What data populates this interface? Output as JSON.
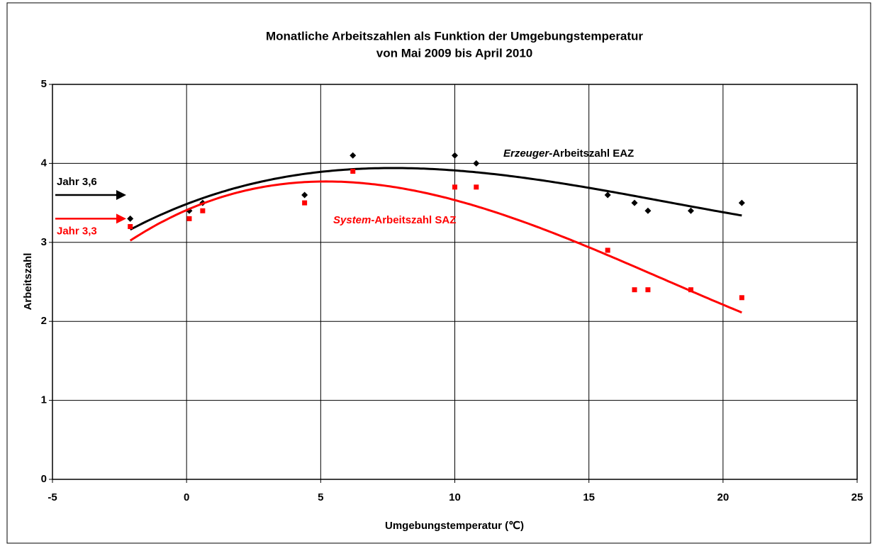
{
  "chart_data": {
    "type": "scatter",
    "title": [
      "Monatliche Arbeitszahlen als Funktion der Umgebungstemperatur",
      "von Mai 2009 bis April 2010"
    ],
    "x_label": "Umgebungstemperatur (℃)",
    "y_label": "Arbeitszahl",
    "xlim": [
      -5,
      25
    ],
    "xticks": [
      -5,
      0,
      5,
      10,
      15,
      20,
      25
    ],
    "ylim": [
      0,
      5
    ],
    "yticks": [
      0,
      1,
      2,
      3,
      4,
      5
    ],
    "grid": true,
    "trendline": {
      "type": "polynomial",
      "order": 3
    },
    "series": [
      {
        "name_parts": [
          "Erzeuger",
          "-Arbeitszahl EAZ"
        ],
        "color": "#000000",
        "marker": "diamond",
        "x": [
          -2.1,
          0.1,
          0.6,
          4.4,
          6.2,
          10.0,
          10.8,
          15.7,
          16.7,
          17.2,
          18.8,
          20.7
        ],
        "values": [
          3.3,
          3.4,
          3.5,
          3.6,
          4.1,
          4.1,
          4.0,
          3.6,
          3.5,
          3.4,
          3.4,
          3.5
        ]
      },
      {
        "name_parts": [
          "System",
          "-Arbeitszahl SAZ"
        ],
        "color": "#ff0000",
        "marker": "square",
        "x": [
          -2.1,
          0.1,
          0.6,
          4.4,
          6.2,
          10.0,
          10.8,
          15.7,
          16.7,
          17.2,
          18.8,
          20.7
        ],
        "values": [
          3.2,
          3.3,
          3.4,
          3.5,
          3.9,
          3.7,
          3.7,
          2.9,
          2.4,
          2.4,
          2.4,
          2.3
        ]
      }
    ],
    "annotations": [
      {
        "text": "Jahr 3,6",
        "value": 3.6,
        "color": "#000000"
      },
      {
        "text": "Jahr 3,3",
        "value": 3.3,
        "color": "#ff0000"
      }
    ]
  }
}
